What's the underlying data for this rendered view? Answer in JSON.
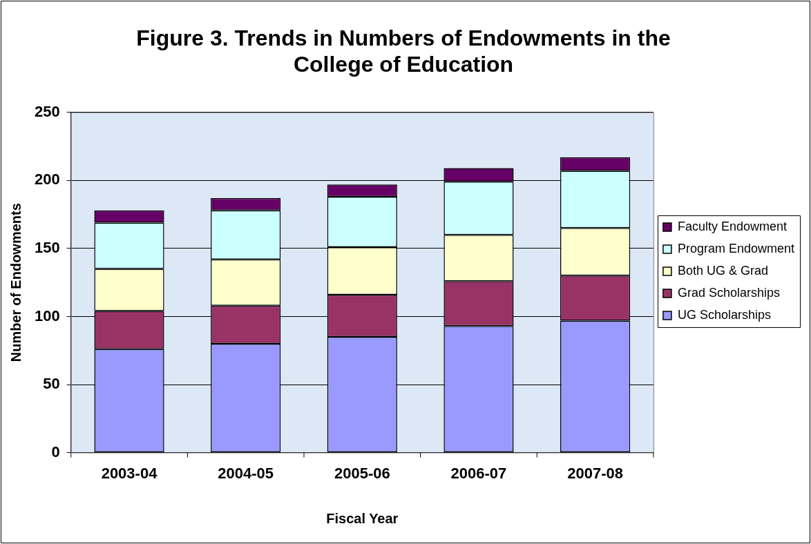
{
  "chart_data": {
    "type": "bar",
    "title": [
      "Figure 3. Trends in Numbers of Endowments in the",
      "College of Education"
    ],
    "xlabel": "Fiscal Year",
    "ylabel": "Number of Endowments",
    "categories": [
      "2003-04",
      "2004-05",
      "2005-06",
      "2006-07",
      "2007-08"
    ],
    "stacked": true,
    "series": [
      {
        "name": "UG Scholarships",
        "color": "#9999ff",
        "values": [
          76,
          80,
          85,
          93,
          97
        ]
      },
      {
        "name": "Grad Scholarships",
        "color": "#993366",
        "values": [
          28,
          28,
          31,
          33,
          33
        ]
      },
      {
        "name": "Both UG & Grad",
        "color": "#ffffcc",
        "values": [
          31,
          34,
          35,
          34,
          35
        ]
      },
      {
        "name": "Program Endowment",
        "color": "#ccffff",
        "values": [
          34,
          36,
          37,
          39,
          42
        ]
      },
      {
        "name": "Faculty Endowment",
        "color": "#660066",
        "values": [
          9,
          9,
          9,
          10,
          10
        ]
      }
    ],
    "ylim": [
      0,
      250
    ],
    "yticks": [
      0,
      50,
      100,
      150,
      200,
      250
    ],
    "grid": "y",
    "legend": "right"
  }
}
